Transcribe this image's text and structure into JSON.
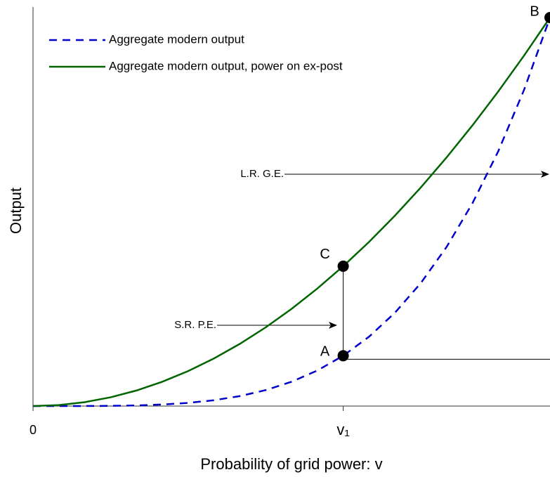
{
  "chart_data": {
    "type": "line",
    "xlabel": "Probability of grid power: v",
    "ylabel": "Output",
    "x": [
      0,
      0.05,
      0.1,
      0.15,
      0.2,
      0.25,
      0.3,
      0.35,
      0.4,
      0.45,
      0.5,
      0.55,
      0.6,
      0.65,
      0.7,
      0.75,
      0.8,
      0.85,
      0.9,
      0.95,
      1
    ],
    "series": [
      {
        "name": "Aggregate modern output",
        "color": "#0000cc",
        "dashed": true,
        "values": [
          0,
          0,
          0.0001,
          0.0005,
          0.0016,
          0.0039,
          0.0081,
          0.015,
          0.0256,
          0.041,
          0.0625,
          0.0915,
          0.1296,
          0.1785,
          0.2401,
          0.3164,
          0.4096,
          0.522,
          0.6561,
          0.8145,
          1
        ]
      },
      {
        "name": "Aggregate modern output, power on ex-post",
        "color": "#006400",
        "dashed": false,
        "values": [
          0,
          0.0025,
          0.01,
          0.0225,
          0.04,
          0.0625,
          0.09,
          0.1225,
          0.16,
          0.2025,
          0.25,
          0.3025,
          0.36,
          0.4225,
          0.49,
          0.5625,
          0.64,
          0.7225,
          0.81,
          0.9025,
          1
        ]
      }
    ],
    "points": [
      {
        "label": "A",
        "x": 0.6,
        "y": 0.1296
      },
      {
        "label": "C",
        "x": 0.6,
        "y": 0.36
      },
      {
        "label": "B",
        "x": 1,
        "y": 1
      }
    ],
    "annotations": [
      "L.R. G.E.",
      "S.R. P.E."
    ],
    "xlim": [
      0,
      1
    ],
    "ylim": [
      0,
      1
    ],
    "xticks": [
      0,
      {
        "value": 0.6,
        "label": "v₁"
      }
    ],
    "legend": "upper left"
  }
}
